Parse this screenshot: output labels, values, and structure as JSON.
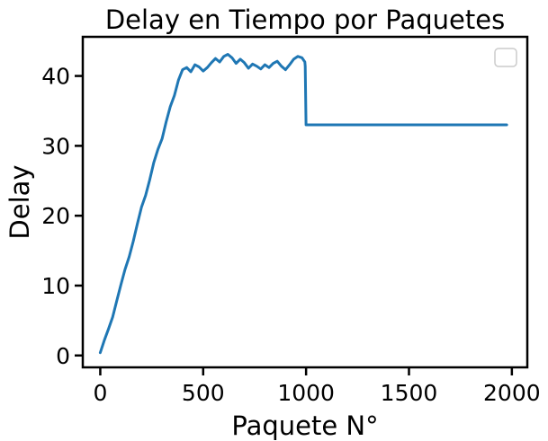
{
  "chart_data": {
    "type": "line",
    "title": "Delay en Tiempo por Paquetes",
    "xlabel": "Paquete N°",
    "ylabel": "Delay",
    "xlim": [
      -85,
      2075
    ],
    "ylim": [
      -1.7,
      45.6
    ],
    "x_ticks": [
      0,
      500,
      1000,
      1500,
      2000
    ],
    "x_tick_labels": [
      "0",
      "500",
      "1000",
      "1500",
      "2000"
    ],
    "y_ticks": [
      0,
      10,
      20,
      30,
      40
    ],
    "y_tick_labels": [
      "0",
      "10",
      "20",
      "30",
      "40"
    ],
    "grid": false,
    "legend": "top-right, empty",
    "series_color": "#1f77b4",
    "series": [
      {
        "x": [
          0,
          20,
          40,
          60,
          80,
          100,
          120,
          140,
          160,
          180,
          200,
          220,
          240,
          260,
          280,
          300,
          320,
          340,
          360,
          380,
          400,
          420,
          440,
          460,
          480,
          500,
          520,
          540,
          560,
          580,
          600,
          620,
          640,
          660,
          680,
          700,
          720,
          740,
          760,
          780,
          800,
          820,
          840,
          860,
          880,
          900,
          920,
          940,
          960,
          980,
          994,
          996,
          1000,
          1500,
          1975
        ],
        "y": [
          0.4,
          2.2,
          3.8,
          5.5,
          7.8,
          10.1,
          12.3,
          14.1,
          16.3,
          18.8,
          21.2,
          22.9,
          25.1,
          27.6,
          29.5,
          31.0,
          33.4,
          35.6,
          37.2,
          39.4,
          40.9,
          41.2,
          40.6,
          41.6,
          41.3,
          40.7,
          41.2,
          41.9,
          42.5,
          42.0,
          42.8,
          43.1,
          42.6,
          41.8,
          42.4,
          41.9,
          41.1,
          41.7,
          41.4,
          41.0,
          41.6,
          41.2,
          41.8,
          42.1,
          41.4,
          40.9,
          41.6,
          42.4,
          42.8,
          42.6,
          42.0,
          41.4,
          33.0,
          33.0,
          33.0
        ]
      }
    ]
  }
}
